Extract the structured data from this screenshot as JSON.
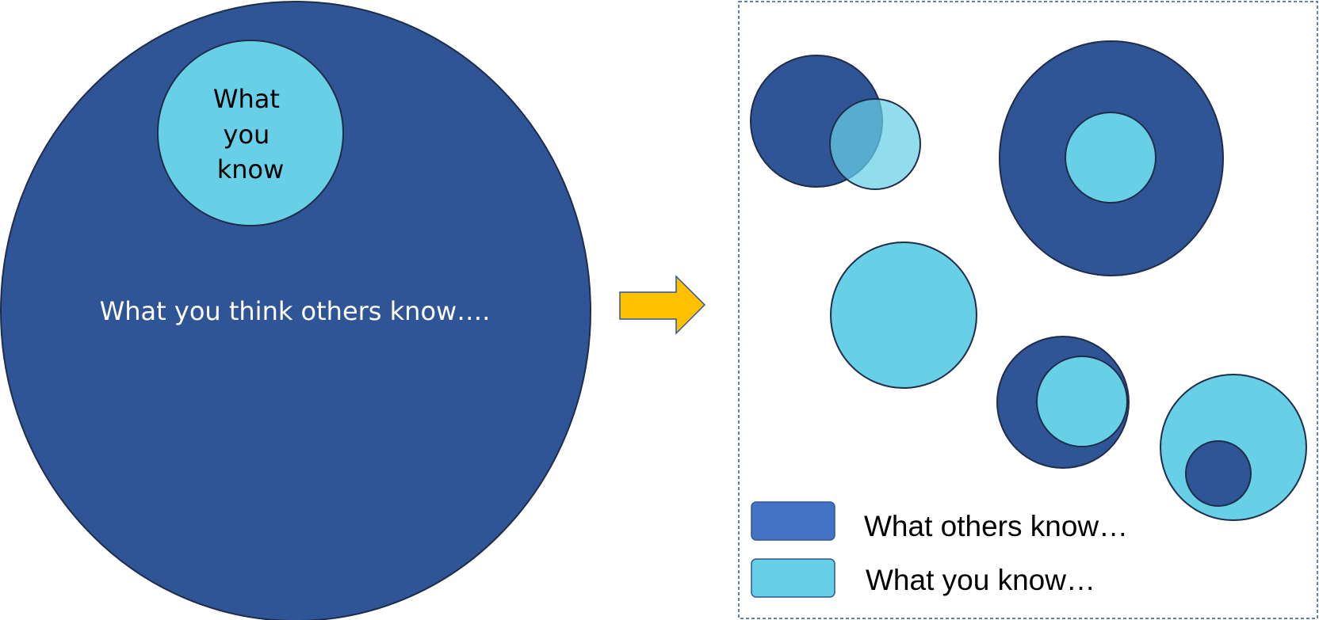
{
  "colors": {
    "dark_blue": "#2f5597",
    "light_blue": "#67cfe6",
    "legend_dark_blue": "#4472c4",
    "arrow": "#ffc000",
    "outline": "#1f2d4a",
    "panel_border": "#2f5597"
  },
  "left_panel": {
    "inner_circle_label_lines": [
      "What",
      "you",
      "know"
    ],
    "outer_circle_label": "What you think others know…."
  },
  "arrow": {
    "icon": "right-arrow-icon"
  },
  "right_panel": {
    "legend": [
      {
        "label": "What others know…",
        "color_key": "legend_dark_blue"
      },
      {
        "label": "What you know…",
        "color_key": "light_blue"
      }
    ]
  }
}
